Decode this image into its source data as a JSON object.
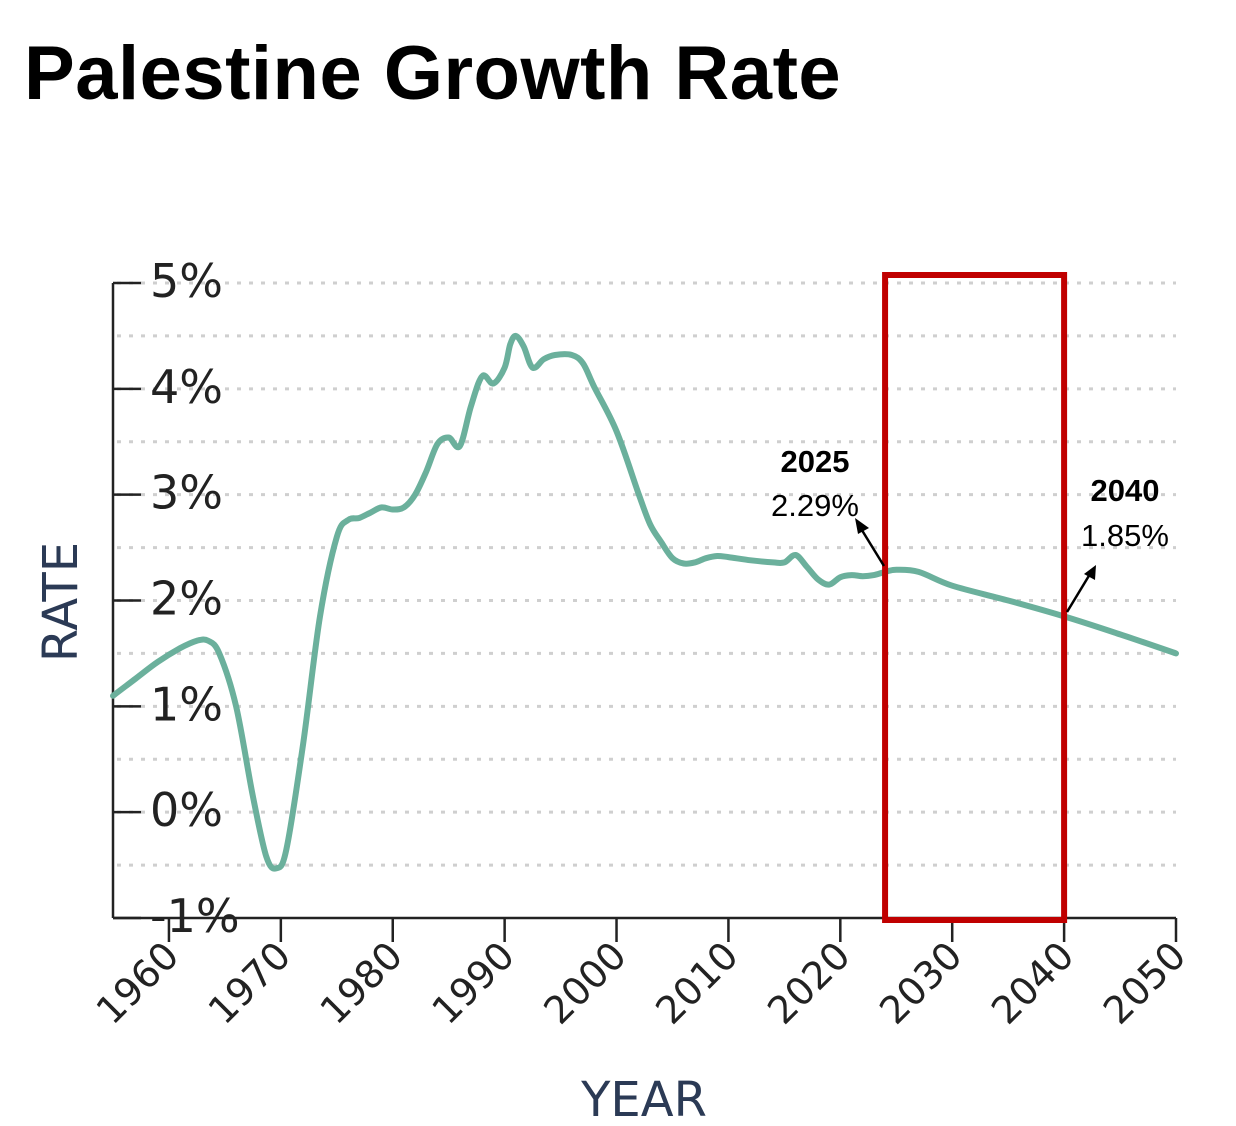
{
  "chart_data": {
    "type": "line",
    "title": "Palestine Growth Rate",
    "xlabel": "YEAR",
    "ylabel": "RATE",
    "xlim": [
      1955,
      2050
    ],
    "ylim": [
      -1,
      5
    ],
    "x_ticks": [
      1960,
      1970,
      1980,
      1990,
      2000,
      2010,
      2020,
      2030,
      2040,
      2050
    ],
    "x_tick_labels": [
      "1960",
      "1970",
      "1980",
      "1990",
      "2000",
      "2010",
      "2020",
      "2030",
      "2040",
      "2050"
    ],
    "y_ticks": [
      -1,
      0,
      1,
      2,
      3,
      4,
      5
    ],
    "y_tick_labels": [
      "-1%",
      "0%",
      "1%",
      "2%",
      "3%",
      "4%",
      "5%"
    ],
    "grid": "horizontal-dotted",
    "line_color": "#6bb09c",
    "highlight_color": "#c00000",
    "highlight_range": [
      2024,
      2040
    ],
    "series": [
      {
        "x": [
          1955,
          1957,
          1959,
          1961,
          1962.5,
          1963.5,
          1964.5,
          1966,
          1967.5,
          1968.7,
          1969.6,
          1970.5,
          1972,
          1973.5,
          1975,
          1976,
          1977,
          1978,
          1979,
          1980,
          1981,
          1982,
          1983,
          1984,
          1985,
          1986,
          1987,
          1988,
          1989,
          1990,
          1990.5,
          1991,
          1991.7,
          1992.5,
          1993.5,
          1994.5,
          1996,
          1997,
          1998,
          2000,
          2002,
          2003,
          2004,
          2005,
          2006,
          2007,
          2008,
          2009,
          2010,
          2012,
          2014,
          2015,
          2016,
          2017,
          2018,
          2019,
          2020,
          2021,
          2022,
          2023,
          2024,
          2025,
          2027,
          2030,
          2035,
          2040,
          2045,
          2050
        ],
        "values": [
          1.1,
          1.26,
          1.42,
          1.55,
          1.62,
          1.62,
          1.5,
          1.0,
          0.15,
          -0.42,
          -0.53,
          -0.35,
          0.65,
          1.85,
          2.6,
          2.76,
          2.78,
          2.83,
          2.88,
          2.86,
          2.88,
          3.0,
          3.22,
          3.48,
          3.54,
          3.46,
          3.84,
          4.12,
          4.05,
          4.2,
          4.42,
          4.5,
          4.4,
          4.2,
          4.28,
          4.32,
          4.32,
          4.24,
          4.02,
          3.6,
          3.0,
          2.72,
          2.55,
          2.4,
          2.35,
          2.36,
          2.4,
          2.42,
          2.41,
          2.38,
          2.36,
          2.36,
          2.43,
          2.32,
          2.2,
          2.15,
          2.22,
          2.24,
          2.23,
          2.24,
          2.27,
          2.29,
          2.27,
          2.14,
          2.0,
          1.85,
          1.68,
          1.5
        ]
      }
    ],
    "annotations": [
      {
        "year": "2025",
        "value": "2.29%"
      },
      {
        "year": "2040",
        "value": "1.85%"
      }
    ]
  }
}
